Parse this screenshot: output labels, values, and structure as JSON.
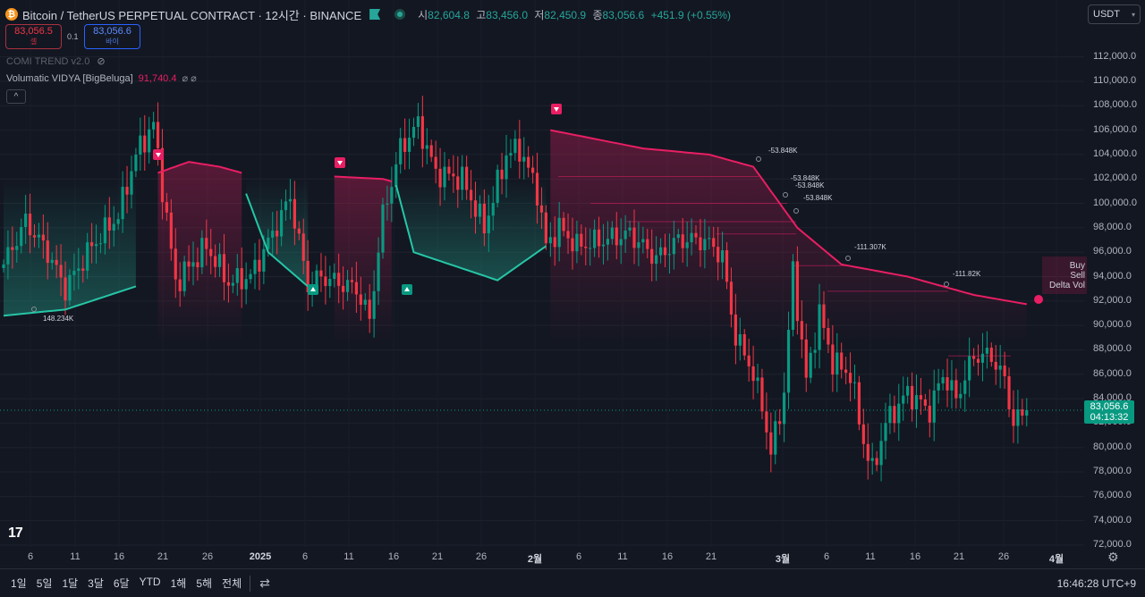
{
  "header": {
    "coin_glyph": "₿",
    "symbol_title": "Bitcoin / TetherUS PERPETUAL CONTRACT · 12시간 · BINANCE",
    "open_label": "시",
    "open": "82,604.8",
    "high_label": "고",
    "high": "83,456.0",
    "low_label": "저",
    "low": "82,450.9",
    "close_label": "종",
    "close": "83,056.6",
    "change": "+451.9 (+0.55%)"
  },
  "trade": {
    "sell_price": "83,056.5",
    "sell_label": "셀",
    "spread": "0.1",
    "buy_price": "83,056.6",
    "buy_label": "바이"
  },
  "indicators": {
    "comi_name": "COMI TREND v2.0",
    "vidya_name": "Volumatic VIDYA [BigBeluga]",
    "vidya_value": "91,740.4",
    "vidya_symbols": "⌀ ⌀",
    "collapse_glyph": "^"
  },
  "currency": "USDT",
  "price_axis": [
    "112,000.0",
    "110,000.0",
    "108,000.0",
    "106,000.0",
    "104,000.0",
    "102,000.0",
    "100,000.0",
    "98,000.0",
    "96,000.0",
    "94,000.0",
    "92,000.0",
    "90,000.0",
    "88,000.0",
    "86,000.0",
    "84,000.0",
    "82,000.0",
    "80,000.0",
    "78,000.0",
    "76,000.0",
    "74,000.0",
    "72,000.0"
  ],
  "last_price": "83,056.6",
  "countdown": "04:13:32",
  "time_axis": [
    "6",
    "11",
    "16",
    "21",
    "26",
    "2025",
    "6",
    "11",
    "16",
    "21",
    "26",
    "2월",
    "6",
    "11",
    "16",
    "21",
    "3월",
    "6",
    "11",
    "16",
    "21",
    "26",
    "4월"
  ],
  "volume_labels": [
    "148.234K",
    "-53.848K",
    "-53.848K",
    "-53.848K",
    "-53.848K",
    "-111.307K",
    "-111.82K"
  ],
  "legend_box": [
    "Buy",
    "Sell",
    "Delta Vol"
  ],
  "tv_logo": "17",
  "settings_glyph": "⚙",
  "bottom_bar": {
    "ranges": [
      "1일",
      "5일",
      "1달",
      "3달",
      "6달",
      "YTD",
      "1해",
      "5해",
      "전체"
    ],
    "goto_glyph": "⇄",
    "clock": "16:46:28 UTC+9"
  },
  "colors": {
    "background": "#131722",
    "up": "#089981",
    "down": "#f23645",
    "vidya_bear": "#e91e63",
    "vidya_bull": "#26c6a6"
  },
  "chart_data": {
    "type": "candlestick",
    "title": "Bitcoin / TetherUS PERPETUAL CONTRACT · 12시간 · BINANCE",
    "ylim": [
      72000,
      113000
    ],
    "close_keypoints": [
      {
        "x": 0,
        "y": 95000
      },
      {
        "x": 5,
        "y": 98500
      },
      {
        "x": 10,
        "y": 96000
      },
      {
        "x": 14,
        "y": 93000
      },
      {
        "x": 20,
        "y": 96500
      },
      {
        "x": 26,
        "y": 99000
      },
      {
        "x": 30,
        "y": 104000
      },
      {
        "x": 34,
        "y": 106500
      },
      {
        "x": 39,
        "y": 93500
      },
      {
        "x": 46,
        "y": 96500
      },
      {
        "x": 51,
        "y": 93500
      },
      {
        "x": 56,
        "y": 94000
      },
      {
        "x": 61,
        "y": 97500
      },
      {
        "x": 65,
        "y": 100500
      },
      {
        "x": 69,
        "y": 93200
      },
      {
        "x": 72,
        "y": 94000
      },
      {
        "x": 80,
        "y": 93000
      },
      {
        "x": 83,
        "y": 90500
      },
      {
        "x": 86,
        "y": 99000
      },
      {
        "x": 90,
        "y": 104500
      },
      {
        "x": 94,
        "y": 106500
      },
      {
        "x": 98,
        "y": 102500
      },
      {
        "x": 104,
        "y": 102000
      },
      {
        "x": 109,
        "y": 98000
      },
      {
        "x": 114,
        "y": 104000
      },
      {
        "x": 117,
        "y": 104500
      },
      {
        "x": 121,
        "y": 101000
      },
      {
        "x": 123,
        "y": 96500
      },
      {
        "x": 126,
        "y": 98000
      },
      {
        "x": 130,
        "y": 96500
      },
      {
        "x": 136,
        "y": 97000
      },
      {
        "x": 142,
        "y": 97500
      },
      {
        "x": 148,
        "y": 95500
      },
      {
        "x": 153,
        "y": 97000
      },
      {
        "x": 158,
        "y": 97000
      },
      {
        "x": 161,
        "y": 96500
      },
      {
        "x": 163,
        "y": 95500
      },
      {
        "x": 166,
        "y": 89000
      },
      {
        "x": 169,
        "y": 87000
      },
      {
        "x": 172,
        "y": 83500
      },
      {
        "x": 174,
        "y": 79500
      },
      {
        "x": 177,
        "y": 84500
      },
      {
        "x": 179,
        "y": 94500
      },
      {
        "x": 182,
        "y": 85500
      },
      {
        "x": 185,
        "y": 91000
      },
      {
        "x": 188,
        "y": 87000
      },
      {
        "x": 192,
        "y": 86000
      },
      {
        "x": 195,
        "y": 80500
      },
      {
        "x": 197,
        "y": 78000
      },
      {
        "x": 200,
        "y": 82000
      },
      {
        "x": 205,
        "y": 84500
      },
      {
        "x": 210,
        "y": 83000
      },
      {
        "x": 213,
        "y": 86000
      },
      {
        "x": 216,
        "y": 84000
      },
      {
        "x": 220,
        "y": 87500
      },
      {
        "x": 224,
        "y": 87500
      },
      {
        "x": 227,
        "y": 85500
      },
      {
        "x": 229,
        "y": 82000
      },
      {
        "x": 232,
        "y": 83056.6
      }
    ],
    "vidya_segments": [
      {
        "trend": "up",
        "points": [
          [
            0,
            90800
          ],
          [
            14,
            91300
          ],
          [
            30,
            93200
          ]
        ]
      },
      {
        "trend": "down",
        "points": [
          [
            35,
            102500
          ],
          [
            42,
            103400
          ],
          [
            49,
            103000
          ],
          [
            54,
            102500
          ]
        ]
      },
      {
        "trend": "up",
        "points": [
          [
            55,
            100800
          ],
          [
            60,
            96000
          ],
          [
            69,
            93200
          ]
        ]
      },
      {
        "trend": "down",
        "points": [
          [
            75,
            102200
          ],
          [
            86,
            102000
          ],
          [
            88,
            101800
          ]
        ]
      },
      {
        "trend": "up",
        "points": [
          [
            89,
            101500
          ],
          [
            93,
            96000
          ],
          [
            112,
            93700
          ],
          [
            123,
            96500
          ]
        ]
      },
      {
        "trend": "down",
        "points": [
          [
            124,
            106000
          ],
          [
            145,
            104500
          ],
          [
            160,
            104000
          ],
          [
            170,
            103000
          ],
          [
            180,
            98000
          ],
          [
            190,
            95000
          ],
          [
            205,
            94000
          ],
          [
            220,
            92500
          ],
          [
            232,
            91740
          ]
        ]
      }
    ],
    "last_price": 83056.6
  }
}
